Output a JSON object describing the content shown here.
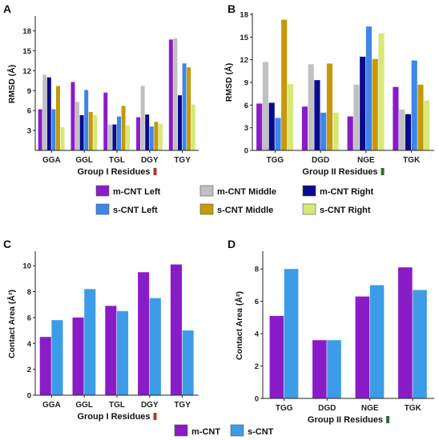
{
  "colors": {
    "m_left": "#8a1cc8",
    "m_middle": "#c0c0c0",
    "m_right": "#0a0a8c",
    "s_left": "#3d86e8",
    "s_middle": "#c49a0a",
    "s_right": "#d8e878",
    "m_cnt": "#8a1cc8",
    "s_cnt": "#3d9ce8",
    "group1_marker": "#b03a2e",
    "group2_marker": "#2e6b3a"
  },
  "legend_top": {
    "items": [
      {
        "label": "m-CNT Left",
        "color_key": "m_left"
      },
      {
        "label": "m-CNT Middle",
        "color_key": "m_middle"
      },
      {
        "label": "m-CNT Right",
        "color_key": "m_right"
      },
      {
        "label": "s-CNT Left",
        "color_key": "s_left"
      },
      {
        "label": "s-CNT Middle",
        "color_key": "s_middle"
      },
      {
        "label": "s-CNT Right",
        "color_key": "s_right"
      }
    ]
  },
  "legend_bottom": {
    "items": [
      {
        "label": "m-CNT",
        "color_key": "m_cnt"
      },
      {
        "label": "s-CNT",
        "color_key": "s_cnt"
      }
    ]
  },
  "chart_data": [
    {
      "panel": "A",
      "type": "bar",
      "categories": [
        "GGA",
        "GGL",
        "TGL",
        "DGY",
        "TGY"
      ],
      "xlabel": "Group I Residues",
      "ylabel": "RMSD (Å)",
      "ylim": [
        0,
        20
      ],
      "yticks": [
        3,
        6,
        9,
        12,
        15,
        18
      ],
      "series": [
        {
          "name": "m-CNT Left",
          "values": [
            6.2,
            10.3,
            8.7,
            5.0,
            16.7
          ]
        },
        {
          "name": "m-CNT Middle",
          "values": [
            11.4,
            7.3,
            3.9,
            9.7,
            16.9
          ]
        },
        {
          "name": "m-CNT Right",
          "values": [
            11.0,
            5.3,
            3.9,
            5.4,
            8.3
          ]
        },
        {
          "name": "s-CNT Left",
          "values": [
            6.2,
            9.1,
            5.1,
            3.6,
            13.1
          ]
        },
        {
          "name": "s-CNT Middle",
          "values": [
            9.7,
            5.8,
            6.7,
            4.3,
            12.5
          ]
        },
        {
          "name": "s-CNT Right",
          "values": [
            3.5,
            5.3,
            3.8,
            4.0,
            6.9
          ]
        }
      ]
    },
    {
      "panel": "B",
      "type": "bar",
      "categories": [
        "TGG",
        "DGD",
        "NGE",
        "TGK"
      ],
      "xlabel": "Group II Residues",
      "ylabel": "RMSD (Å)",
      "ylim": [
        0,
        18
      ],
      "yticks": [
        0,
        3,
        6,
        9,
        12,
        15,
        18
      ],
      "series": [
        {
          "name": "m-CNT Left",
          "values": [
            6.2,
            5.8,
            4.5,
            8.4
          ]
        },
        {
          "name": "m-CNT Middle",
          "values": [
            11.7,
            11.4,
            8.7,
            5.4
          ]
        },
        {
          "name": "m-CNT Right",
          "values": [
            6.3,
            9.3,
            12.4,
            4.8
          ]
        },
        {
          "name": "s-CNT Left",
          "values": [
            4.3,
            5.0,
            16.4,
            11.9
          ]
        },
        {
          "name": "s-CNT Middle",
          "values": [
            17.3,
            11.5,
            12.1,
            8.7
          ]
        },
        {
          "name": "s-CNT Right",
          "values": [
            8.8,
            5.0,
            15.5,
            6.6
          ]
        }
      ]
    },
    {
      "panel": "C",
      "type": "bar",
      "categories": [
        "GGA",
        "GGL",
        "TGL",
        "DGY",
        "TGY"
      ],
      "xlabel": "Group I Residues",
      "ylabel": "Contact Area (Å²)",
      "ylim": [
        0,
        11
      ],
      "yticks": [
        0,
        2,
        4,
        6,
        8,
        10
      ],
      "series": [
        {
          "name": "m-CNT",
          "values": [
            4.5,
            6.0,
            6.9,
            9.5,
            10.1
          ]
        },
        {
          "name": "s-CNT",
          "values": [
            5.8,
            8.2,
            6.5,
            7.5,
            5.0
          ]
        }
      ]
    },
    {
      "panel": "D",
      "type": "bar",
      "categories": [
        "TGG",
        "DGD",
        "NGE",
        "TGK"
      ],
      "xlabel": "Group II Residues",
      "ylabel": "Contact Area (Å²)",
      "ylim": [
        0,
        9
      ],
      "yticks": [
        0,
        2,
        4,
        6,
        8
      ],
      "series": [
        {
          "name": "m-CNT",
          "values": [
            5.1,
            3.6,
            6.3,
            8.1
          ]
        },
        {
          "name": "s-CNT",
          "values": [
            8.0,
            3.6,
            7.0,
            6.7
          ]
        }
      ]
    }
  ]
}
